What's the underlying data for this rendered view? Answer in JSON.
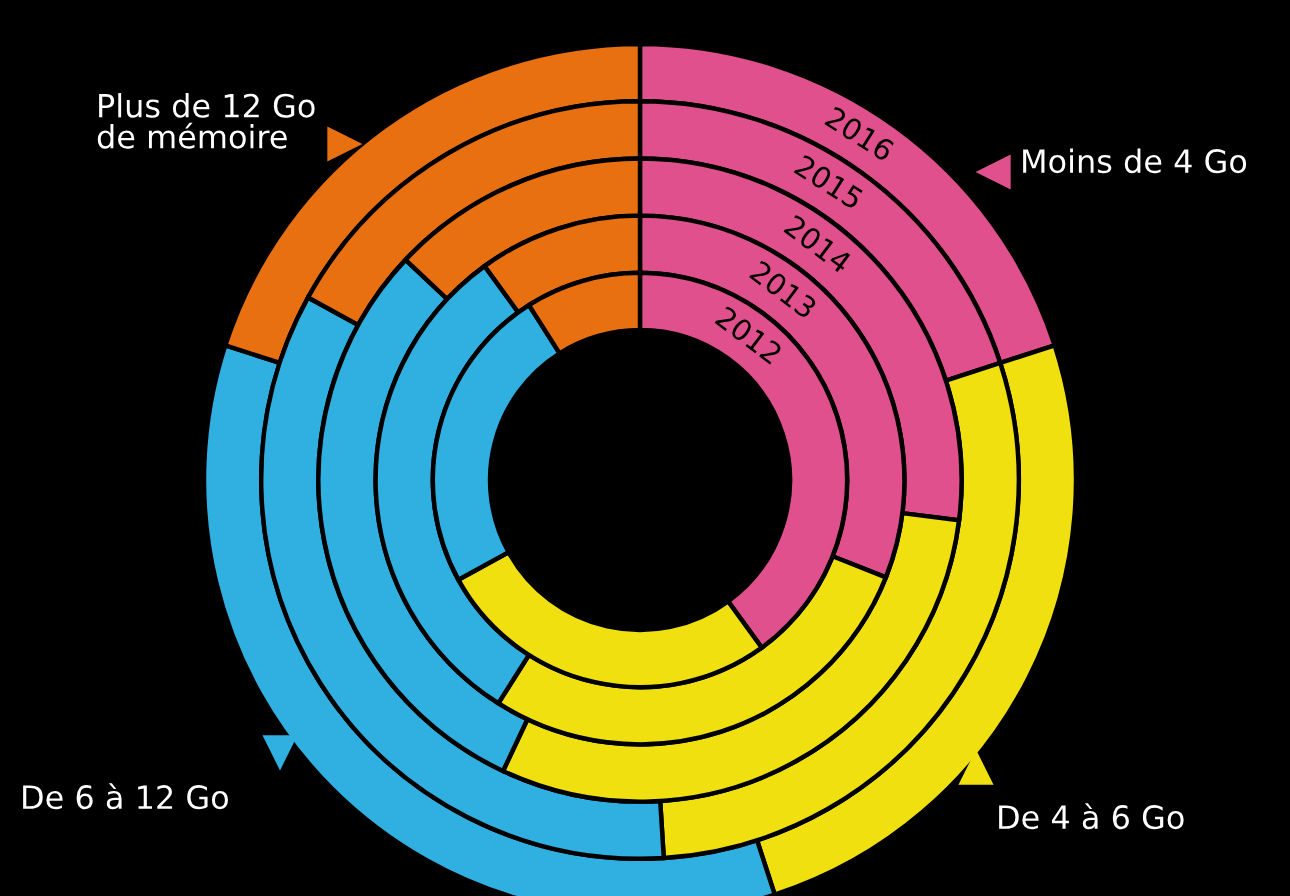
{
  "chart_data": {
    "type": "donut",
    "categories": [
      "Moins de 4 Go",
      "De 4 à 6 Go",
      "De 6 à 12 Go",
      "Plus de 12 Go\nde mémoire"
    ],
    "colors": [
      "#e0508c",
      "#f0e010",
      "#30b0e0",
      "#e87010"
    ],
    "series": [
      {
        "name": "2016",
        "values": [
          20,
          25,
          35,
          20
        ]
      },
      {
        "name": "2015",
        "values": [
          20,
          29,
          34,
          17
        ]
      },
      {
        "name": "2014",
        "values": [
          27,
          30,
          30,
          13
        ]
      },
      {
        "name": "2013",
        "values": [
          31,
          28,
          31,
          10
        ]
      },
      {
        "name": "2012",
        "values": [
          40,
          27,
          24,
          9
        ]
      }
    ]
  }
}
